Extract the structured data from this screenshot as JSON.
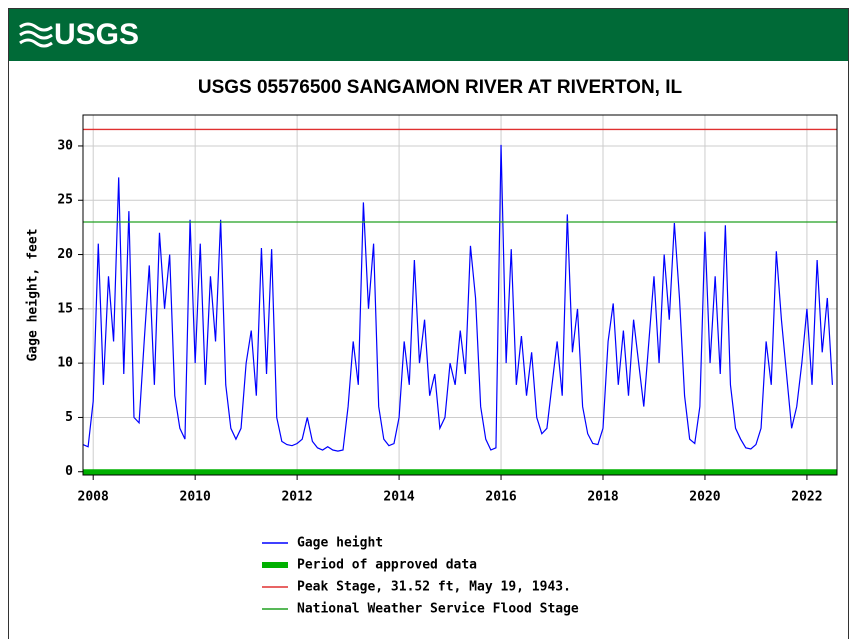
{
  "header": {
    "logo": "USGS"
  },
  "chart_data": {
    "type": "line",
    "title": "USGS 05576500 SANGAMON RIVER AT RIVERTON, IL",
    "y_label": "Gage height, feet",
    "xlim": [
      2007.8,
      2022.59
    ],
    "ylim": [
      -0.3,
      32.85
    ],
    "xticks": [
      2008,
      2010,
      2012,
      2014,
      2016,
      2018,
      2020,
      2022
    ],
    "yticks": [
      0,
      5,
      10,
      15,
      20,
      25,
      30
    ],
    "grid": true,
    "series": [
      {
        "name": "Gage height",
        "color": "#0000ff",
        "x": [
          2007.8,
          2007.9,
          2008.0,
          2008.1,
          2008.2,
          2008.3,
          2008.4,
          2008.5,
          2008.6,
          2008.7,
          2008.8,
          2008.9,
          2009.0,
          2009.1,
          2009.2,
          2009.3,
          2009.4,
          2009.5,
          2009.6,
          2009.7,
          2009.8,
          2009.9,
          2010.0,
          2010.1,
          2010.2,
          2010.3,
          2010.4,
          2010.5,
          2010.6,
          2010.7,
          2010.8,
          2010.9,
          2011.0,
          2011.1,
          2011.2,
          2011.3,
          2011.4,
          2011.5,
          2011.6,
          2011.7,
          2011.8,
          2011.9,
          2012.0,
          2012.1,
          2012.2,
          2012.3,
          2012.4,
          2012.5,
          2012.6,
          2012.7,
          2012.8,
          2012.9,
          2013.0,
          2013.1,
          2013.2,
          2013.3,
          2013.4,
          2013.5,
          2013.6,
          2013.7,
          2013.8,
          2013.9,
          2014.0,
          2014.1,
          2014.2,
          2014.3,
          2014.4,
          2014.5,
          2014.6,
          2014.7,
          2014.8,
          2014.9,
          2015.0,
          2015.1,
          2015.2,
          2015.3,
          2015.4,
          2015.5,
          2015.6,
          2015.7,
          2015.8,
          2015.9,
          2016.0,
          2016.1,
          2016.2,
          2016.3,
          2016.4,
          2016.5,
          2016.6,
          2016.7,
          2016.8,
          2016.9,
          2017.0,
          2017.1,
          2017.2,
          2017.3,
          2017.4,
          2017.5,
          2017.6,
          2017.7,
          2017.8,
          2017.9,
          2018.0,
          2018.1,
          2018.2,
          2018.3,
          2018.4,
          2018.5,
          2018.6,
          2018.7,
          2018.8,
          2018.9,
          2019.0,
          2019.1,
          2019.2,
          2019.3,
          2019.4,
          2019.5,
          2019.6,
          2019.7,
          2019.8,
          2019.9,
          2020.0,
          2020.1,
          2020.2,
          2020.3,
          2020.4,
          2020.5,
          2020.6,
          2020.7,
          2020.8,
          2020.9,
          2021.0,
          2021.1,
          2021.2,
          2021.3,
          2021.4,
          2021.5,
          2021.6,
          2021.7,
          2021.8,
          2021.9,
          2022.0,
          2022.1,
          2022.2,
          2022.3,
          2022.4,
          2022.5
        ],
        "values": [
          2.5,
          2.3,
          6.5,
          21,
          8,
          18,
          12,
          27.1,
          9,
          24,
          5,
          4.5,
          12,
          19,
          8,
          22,
          15,
          20,
          7,
          4,
          3,
          23.2,
          10,
          21,
          8,
          18,
          12,
          23.2,
          8,
          4,
          3,
          4,
          10,
          13,
          7,
          20.6,
          9,
          20.5,
          5,
          2.8,
          2.5,
          2.4,
          2.6,
          3,
          5,
          2.8,
          2.2,
          2,
          2.3,
          2,
          1.9,
          2,
          6,
          12,
          8,
          24.8,
          15,
          21,
          6,
          3,
          2.4,
          2.6,
          5,
          12,
          8,
          19.5,
          10,
          14,
          7,
          9,
          4,
          5,
          10,
          8,
          13,
          9,
          20.8,
          16,
          6,
          3,
          2,
          2.2,
          30.1,
          10,
          20.5,
          8,
          12.5,
          7,
          11,
          5,
          3.5,
          4,
          8,
          12,
          7,
          23.7,
          11,
          15,
          6,
          3.5,
          2.6,
          2.5,
          4,
          12,
          15.5,
          8,
          13,
          7,
          14,
          10,
          6,
          12,
          18,
          10,
          20,
          14,
          22.9,
          16,
          7,
          3,
          2.6,
          6,
          22.1,
          10,
          18,
          9,
          22.7,
          8,
          4,
          3,
          2.2,
          2.1,
          2.5,
          4,
          12,
          8,
          20.3,
          14,
          9,
          4,
          6,
          10,
          15,
          8,
          19.5,
          11,
          16,
          8
        ]
      },
      {
        "name": "Period of approved data",
        "color": "#00b000",
        "x": [
          2007.8,
          2022.59
        ]
      },
      {
        "name": "Peak Stage, 31.52 ft, May 19, 1943.",
        "color": "#e03030",
        "value": 31.52
      },
      {
        "name": "National Weather Service Flood Stage",
        "color": "#20a020",
        "value": 23
      }
    ]
  }
}
